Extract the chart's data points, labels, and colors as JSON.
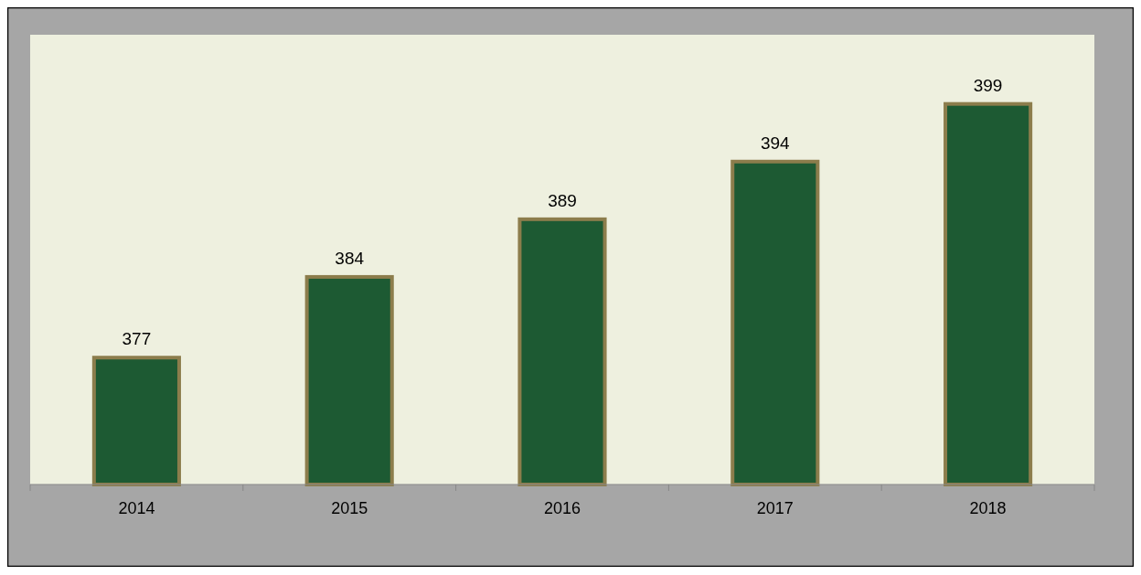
{
  "chart_data": {
    "type": "bar",
    "categories": [
      "2014",
      "2015",
      "2016",
      "2017",
      "2018"
    ],
    "values": [
      377,
      384,
      389,
      394,
      399
    ],
    "color": "#1d5a33",
    "ylim": [
      366,
      405
    ],
    "data_labels": true,
    "tick_labels": "x"
  }
}
